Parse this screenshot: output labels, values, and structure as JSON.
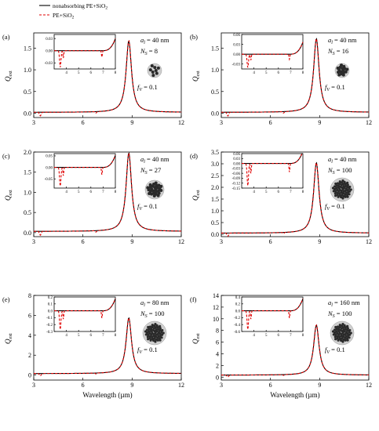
{
  "chart_data": {
    "type": "line",
    "xlabel": "Wavelength (µm)",
    "ylabel_main": "Q",
    "ylabel_sub": "ext",
    "legend": [
      {
        "name": "nonabsorbing PE+SiO",
        "sub": "2",
        "style": "solid",
        "color": "#000000"
      },
      {
        "name": "PE+SiO",
        "sub": "2",
        "style": "dashed",
        "color": "#e00000"
      }
    ],
    "panels": [
      {
        "label": "(a)",
        "xlim": [
          3,
          12
        ],
        "xticks": [
          "3",
          "6",
          "9",
          "12"
        ],
        "ylim": [
          -0.1,
          1.85
        ],
        "yticks": [
          "0.0",
          "0.5",
          "1.0",
          "1.5"
        ],
        "peak": 1.65,
        "peak_x": 8.8,
        "base": 0.02,
        "a_label": "a",
        "a_sub": "l",
        "a_value": " = 40 nm",
        "n_label": "N",
        "n_sub": "S",
        "n_value": " = 8",
        "f_label": "f",
        "f_sub": "V",
        "f_value": " = 0.1",
        "cluster": 8,
        "inset": {
          "xlim": [
            3,
            8
          ],
          "xticks": [
            "4",
            "5",
            "6",
            "7",
            "8"
          ],
          "ylim": [
            -0.045,
            0.04
          ],
          "yticks": [
            "0.03",
            "0.00",
            "-0.03"
          ]
        }
      },
      {
        "label": "(b)",
        "xlim": [
          3,
          12
        ],
        "xticks": [
          "3",
          "6",
          "9",
          "12"
        ],
        "ylim": [
          -0.1,
          1.85
        ],
        "yticks": [
          "0.0",
          "0.5",
          "1.0",
          "1.5"
        ],
        "peak": 1.7,
        "peak_x": 8.8,
        "base": 0.02,
        "a_label": "a",
        "a_sub": "l",
        "a_value": " = 40 nm",
        "n_label": "N",
        "n_sub": "S",
        "n_value": " = 16",
        "f_label": "f",
        "f_sub": "V",
        "f_value": " = 0.1",
        "cluster": 16,
        "inset": {
          "xlim": [
            3,
            8
          ],
          "xticks": [
            "4",
            "5",
            "6",
            "7",
            "8"
          ],
          "ylim": [
            -0.045,
            0.06
          ],
          "yticks": [
            "0.06",
            "0.03",
            "0.00",
            "-0.03"
          ]
        }
      },
      {
        "label": "(c)",
        "xlim": [
          3,
          12
        ],
        "xticks": [
          "3",
          "6",
          "9",
          "12"
        ],
        "ylim": [
          -0.1,
          2.0
        ],
        "yticks": [
          "0.0",
          "0.5",
          "1.0",
          "1.5",
          "2.0"
        ],
        "peak": 1.95,
        "peak_x": 8.8,
        "base": 0.03,
        "a_label": "a",
        "a_sub": "l",
        "a_value": " = 40 nm",
        "n_label": "N",
        "n_sub": "S",
        "n_value": " = 27",
        "f_label": "f",
        "f_sub": "V",
        "f_value": " = 0.1",
        "cluster": 27,
        "inset": {
          "xlim": [
            3,
            8
          ],
          "xticks": [
            "4",
            "5",
            "6",
            "7",
            "8"
          ],
          "ylim": [
            -0.09,
            0.06
          ],
          "yticks": [
            "0.05",
            "0.00",
            "-0.05"
          ]
        }
      },
      {
        "label": "(d)",
        "xlim": [
          3,
          12
        ],
        "xticks": [
          "3",
          "6",
          "9",
          "12"
        ],
        "ylim": [
          -0.1,
          3.5
        ],
        "yticks": [
          "0.0",
          "0.5",
          "1.0",
          "1.5",
          "2.0",
          "2.5",
          "3.0",
          "3.5"
        ],
        "peak": 3.0,
        "peak_x": 8.8,
        "base": 0.05,
        "a_label": "a",
        "a_sub": "l",
        "a_value": " = 40 nm",
        "n_label": "N",
        "n_sub": "S",
        "n_value": " = 100",
        "f_label": "f",
        "f_sub": "V",
        "f_value": " = 0.1",
        "cluster": 100,
        "inset": {
          "xlim": [
            3,
            8
          ],
          "xticks": [
            "4",
            "5",
            "6",
            "7",
            "8"
          ],
          "ylim": [
            -0.15,
            0.06
          ],
          "yticks": [
            "0.06",
            "0.03",
            "0.00",
            "-0.03",
            "-0.06",
            "-0.09",
            "-0.12",
            "-0.15"
          ]
        }
      },
      {
        "label": "(e)",
        "xlim": [
          3,
          12
        ],
        "xticks": [
          "3",
          "6",
          "9",
          "12"
        ],
        "ylim": [
          -0.5,
          8
        ],
        "yticks": [
          "0",
          "2",
          "4",
          "6",
          "8"
        ],
        "peak": 5.6,
        "peak_x": 8.8,
        "base": 0.15,
        "a_label": "a",
        "a_sub": "l",
        "a_value": " = 80 nm",
        "n_label": "N",
        "n_sub": "S",
        "n_value": " = 100",
        "f_label": "f",
        "f_sub": "V",
        "f_value": " = 0.1",
        "cluster": 100,
        "inset": {
          "xlim": [
            3,
            8
          ],
          "xticks": [
            "4",
            "5",
            "6",
            "7",
            "8"
          ],
          "ylim": [
            -0.3,
            0.2
          ],
          "yticks": [
            "0.2",
            "0.1",
            "0.0",
            "-0.1",
            "-0.2",
            "-0.3"
          ]
        }
      },
      {
        "label": "(f)",
        "xlim": [
          3,
          12
        ],
        "xticks": [
          "3",
          "6",
          "9",
          "12"
        ],
        "ylim": [
          -0.5,
          14
        ],
        "yticks": [
          "0",
          "2",
          "4",
          "6",
          "8",
          "10",
          "12",
          "14"
        ],
        "peak": 8.6,
        "peak_x": 8.8,
        "base": 0.35,
        "a_label": "a",
        "a_sub": "l",
        "a_value": " = 160 nm",
        "n_label": "N",
        "n_sub": "S",
        "n_value": " = 100",
        "f_label": "f",
        "f_sub": "V",
        "f_value": " = 0.1",
        "cluster": 100,
        "inset": {
          "xlim": [
            3,
            8
          ],
          "xticks": [
            "4",
            "5",
            "6",
            "7",
            "8"
          ],
          "ylim": [
            -0.6,
            0.4
          ],
          "yticks": [
            "0.4",
            "0.2",
            "0.0",
            "-0.2",
            "-0.4",
            "-0.6"
          ]
        }
      }
    ]
  }
}
